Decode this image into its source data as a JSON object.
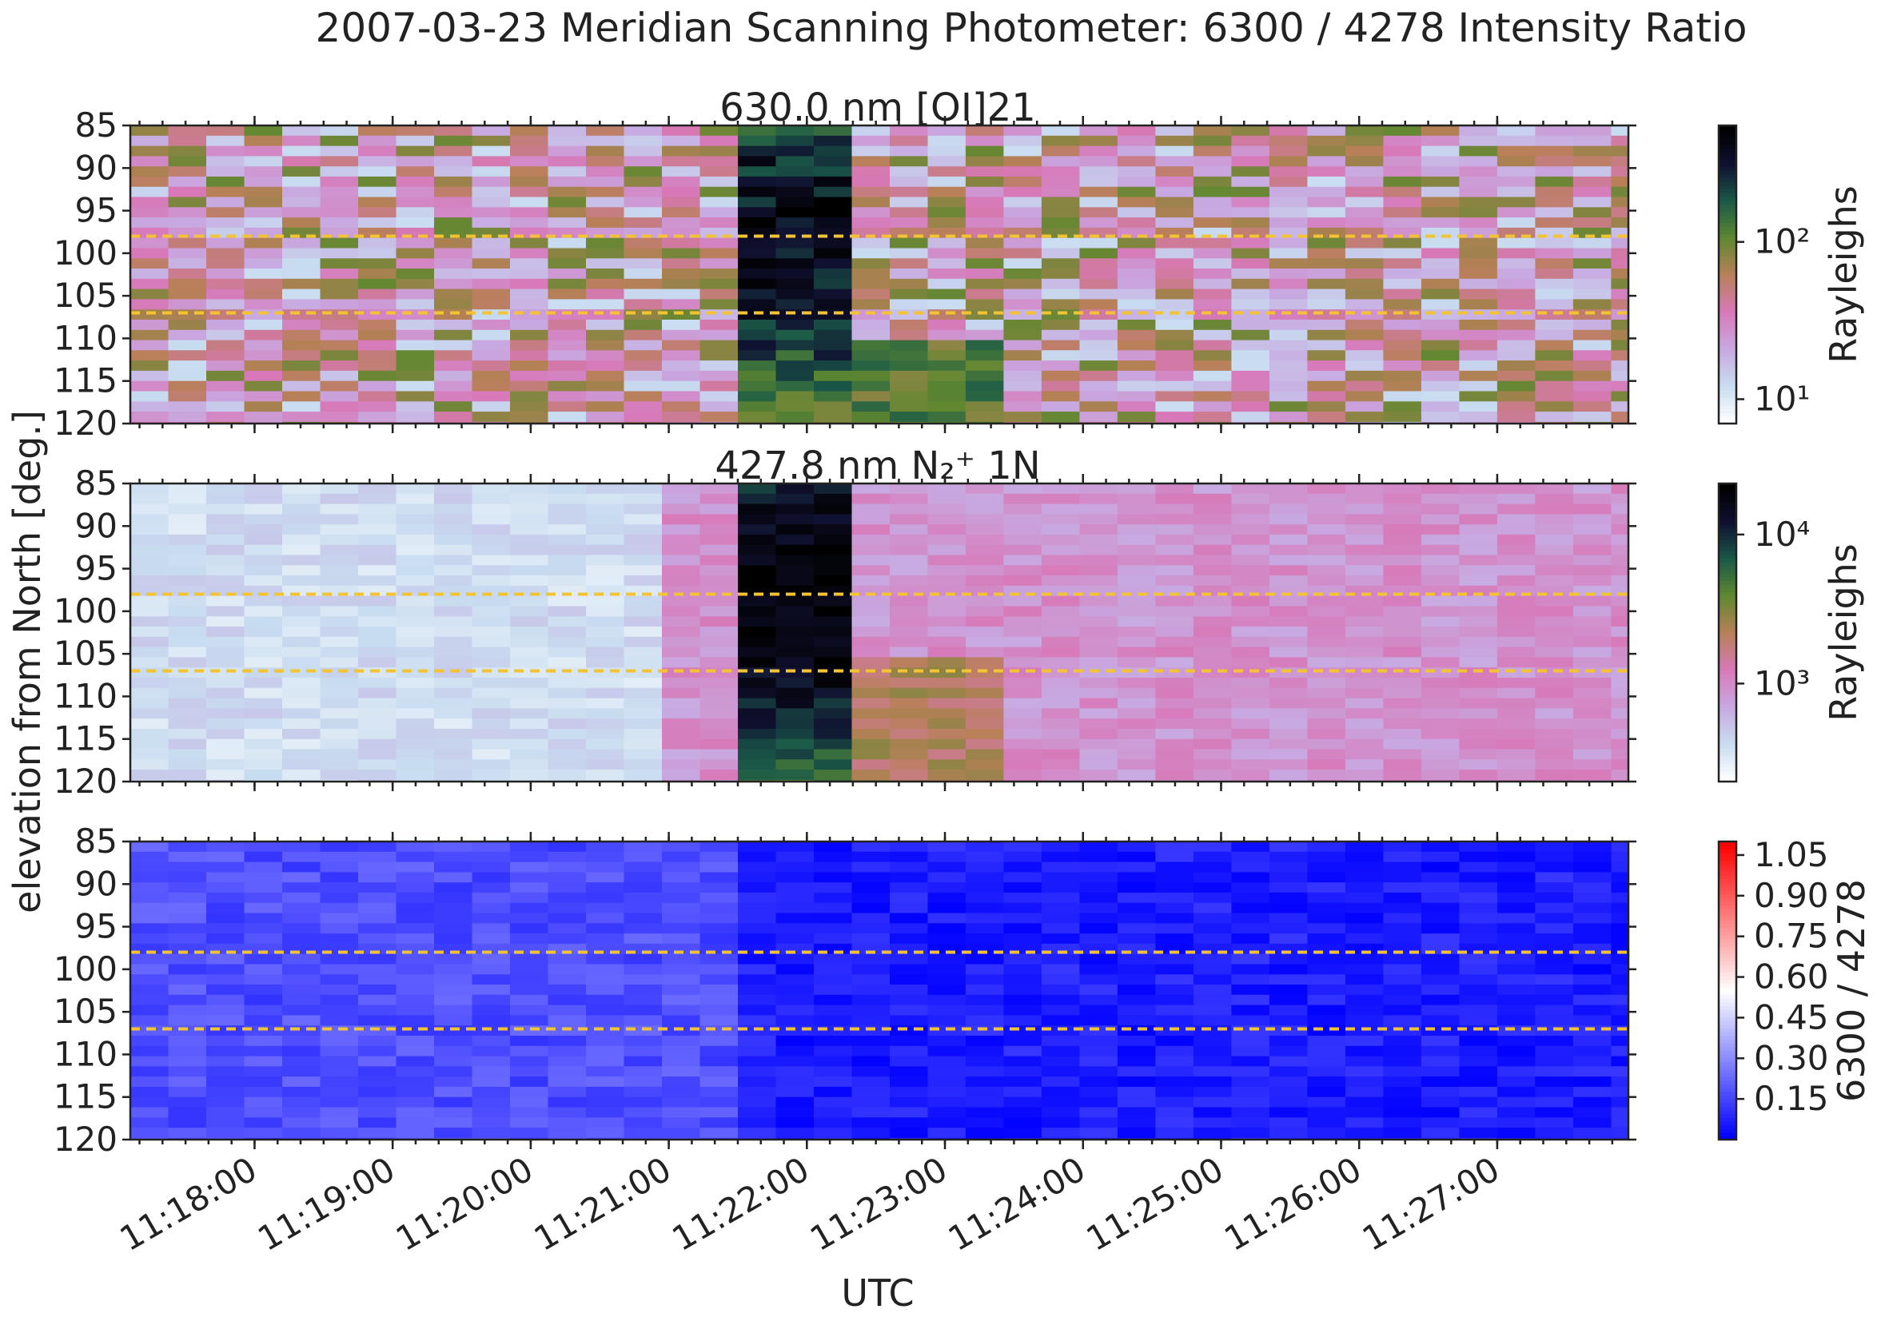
{
  "figure": {
    "title": "2007-03-23  Meridian Scanning Photometer: 6300 / 4278 Intensity Ratio",
    "xlabel": "UTC",
    "ylabel": "elevation from North [deg.]"
  },
  "chart_data": [
    {
      "type": "heatmap",
      "title": "630.0 nm  [OI]21",
      "colorbar": {
        "label": "Rayleighs",
        "scale": "log",
        "ticks": [
          "10¹",
          "10²"
        ],
        "tick_values": [
          10,
          100
        ],
        "range": [
          7,
          550
        ],
        "colormap": [
          "#ffffff",
          "#c8dcf0",
          "#c8a8e0",
          "#d878b8",
          "#b88058",
          "#608830",
          "#1a5a48",
          "#101030",
          "#000000"
        ]
      },
      "x_ticks": [
        "11:18:00",
        "11:19:00",
        "11:20:00",
        "11:21:00",
        "11:22:00",
        "11:23:00",
        "11:24:00",
        "11:25:00",
        "11:26:00",
        "11:27:00"
      ],
      "x_range_minutes": [
        17.1,
        27.95
      ],
      "y_ticks": [
        "85",
        "90",
        "95",
        "100",
        "105",
        "110",
        "115",
        "120"
      ],
      "y_range_deg": [
        85,
        120
      ],
      "reference_lines_deg": [
        98,
        107
      ],
      "cell_time_step_min": 0.275,
      "cell_elev_step_deg": 1.2,
      "event": {
        "start_min": 21.3,
        "end_min": 22.3,
        "late_end_min": 23.4,
        "peak_elev_deg": 98
      },
      "background_level": 35,
      "event_level": 300
    },
    {
      "type": "heatmap",
      "title": "427.8 nm  N₂⁺ 1N",
      "colorbar": {
        "label": "Rayleighs",
        "scale": "log",
        "ticks": [
          "10³",
          "10⁴"
        ],
        "tick_values": [
          1000,
          10000
        ],
        "range": [
          220,
          22000
        ],
        "colormap": [
          "#ffffff",
          "#c8dcf0",
          "#c8a8e0",
          "#d878b8",
          "#b88058",
          "#608830",
          "#1a5a48",
          "#101030",
          "#000000"
        ]
      },
      "x_ticks": [
        "11:18:00",
        "11:19:00",
        "11:20:00",
        "11:21:00",
        "11:22:00",
        "11:23:00",
        "11:24:00",
        "11:25:00",
        "11:26:00",
        "11:27:00"
      ],
      "x_range_minutes": [
        17.1,
        27.95
      ],
      "y_ticks": [
        "85",
        "90",
        "95",
        "100",
        "105",
        "110",
        "115",
        "120"
      ],
      "y_range_deg": [
        85,
        120
      ],
      "reference_lines_deg": [
        98,
        107
      ],
      "cell_time_step_min": 0.275,
      "cell_elev_step_deg": 1.2,
      "event": {
        "start_min": 21.3,
        "end_min": 22.3,
        "late_end_min": 23.4,
        "peak_elev_deg": 98
      },
      "background_level": 900,
      "early_level": 380,
      "event_level": 18000
    },
    {
      "type": "heatmap",
      "title": "",
      "colorbar": {
        "label": "6300 / 4278",
        "scale": "linear",
        "ticks": [
          "0.15",
          "0.30",
          "0.45",
          "0.60",
          "0.75",
          "0.90",
          "1.05"
        ],
        "tick_values": [
          0.15,
          0.3,
          0.45,
          0.6,
          0.75,
          0.9,
          1.05
        ],
        "range": [
          0.0,
          1.1
        ],
        "colormap": [
          "#0000ff",
          "#ffffff",
          "#ff0000"
        ]
      },
      "x_ticks": [
        "11:18:00",
        "11:19:00",
        "11:20:00",
        "11:21:00",
        "11:22:00",
        "11:23:00",
        "11:24:00",
        "11:25:00",
        "11:26:00",
        "11:27:00"
      ],
      "x_range_minutes": [
        17.1,
        27.95
      ],
      "y_ticks": [
        "85",
        "90",
        "95",
        "100",
        "105",
        "110",
        "115",
        "120"
      ],
      "y_range_deg": [
        85,
        120
      ],
      "reference_lines_deg": [
        98,
        107
      ],
      "cell_time_step_min": 0.275,
      "cell_elev_step_deg": 1.2,
      "early_level": 0.17,
      "late_level": 0.06
    }
  ]
}
